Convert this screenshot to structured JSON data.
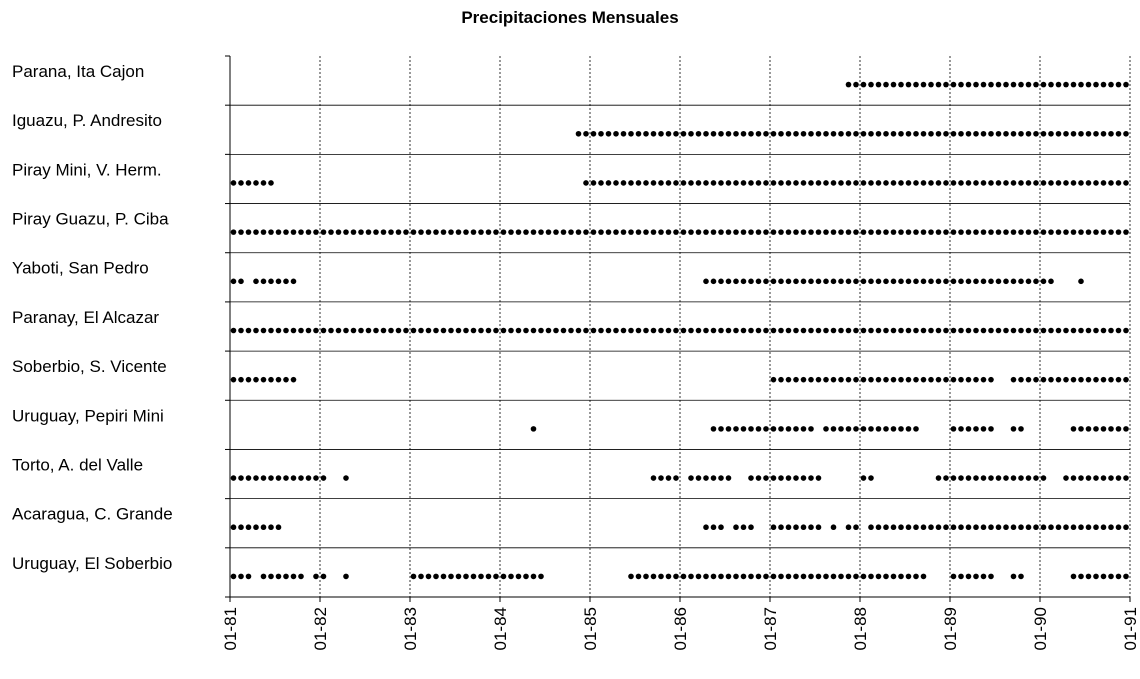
{
  "chart_data": {
    "type": "scatter",
    "title": "Precipitaciones Mensuales",
    "xlabel": "",
    "ylabel": "",
    "x_ticks": [
      "01-81",
      "01-82",
      "01-83",
      "01-84",
      "01-85",
      "01-86",
      "01-87",
      "01-88",
      "01-89",
      "01-90",
      "01-91"
    ],
    "xlim": [
      "1981-01",
      "1991-01"
    ],
    "grid": {
      "vertical": "dotted",
      "horizontal_separators": true
    },
    "marker": {
      "shape": "circle",
      "color": "#000000"
    },
    "series": [
      {
        "name": "Parana, Ita Cajon",
        "segments": [
          [
            "1987-11",
            "1990-12"
          ]
        ]
      },
      {
        "name": "Iguazu, P. Andresito",
        "segments": [
          [
            "1984-11",
            "1990-12"
          ]
        ]
      },
      {
        "name": "Piray Mini, V. Herm.",
        "segments": [
          [
            "1981-01",
            "1981-06"
          ],
          [
            "1984-12",
            "1990-12"
          ]
        ]
      },
      {
        "name": "Piray Guazu, P. Ciba",
        "segments": [
          [
            "1981-01",
            "1990-12"
          ]
        ]
      },
      {
        "name": "Yaboti, San Pedro",
        "segments": [
          [
            "1981-01",
            "1981-02"
          ],
          [
            "1981-04",
            "1981-09"
          ],
          [
            "1986-04",
            "1990-02"
          ],
          [
            "1990-06",
            "1990-06"
          ]
        ]
      },
      {
        "name": "Paranay, El Alcazar",
        "segments": [
          [
            "1981-01",
            "1990-12"
          ]
        ]
      },
      {
        "name": "Soberbio, S. Vicente",
        "segments": [
          [
            "1981-01",
            "1981-09"
          ],
          [
            "1987-01",
            "1989-06"
          ],
          [
            "1989-09",
            "1990-12"
          ]
        ]
      },
      {
        "name": "Uruguay, Pepiri Mini",
        "segments": [
          [
            "1984-05",
            "1984-05"
          ],
          [
            "1986-05",
            "1987-06"
          ],
          [
            "1987-08",
            "1988-08"
          ],
          [
            "1989-01",
            "1989-06"
          ],
          [
            "1989-09",
            "1989-10"
          ],
          [
            "1990-05",
            "1990-12"
          ]
        ]
      },
      {
        "name": "Torto, A. del Valle",
        "segments": [
          [
            "1981-01",
            "1982-01"
          ],
          [
            "1982-04",
            "1982-04"
          ],
          [
            "1985-09",
            "1985-12"
          ],
          [
            "1986-02",
            "1986-07"
          ],
          [
            "1986-10",
            "1987-07"
          ],
          [
            "1988-01",
            "1988-02"
          ],
          [
            "1988-11",
            "1990-01"
          ],
          [
            "1990-04",
            "1990-12"
          ]
        ]
      },
      {
        "name": "Acaragua, C. Grande",
        "segments": [
          [
            "1981-01",
            "1981-07"
          ],
          [
            "1986-04",
            "1986-06"
          ],
          [
            "1986-08",
            "1986-10"
          ],
          [
            "1987-01",
            "1987-07"
          ],
          [
            "1987-09",
            "1987-09"
          ],
          [
            "1987-11",
            "1987-12"
          ],
          [
            "1988-02",
            "1990-12"
          ]
        ]
      },
      {
        "name": "Uruguay, El Soberbio",
        "segments": [
          [
            "1981-01",
            "1981-02"
          ],
          [
            "1981-03",
            "1981-03"
          ],
          [
            "1981-05",
            "1981-10"
          ],
          [
            "1981-12",
            "1982-01"
          ],
          [
            "1982-04",
            "1982-04"
          ],
          [
            "1983-01",
            "1984-06"
          ],
          [
            "1985-06",
            "1987-07"
          ],
          [
            "1987-08",
            "1988-09"
          ],
          [
            "1989-01",
            "1989-06"
          ],
          [
            "1989-09",
            "1989-10"
          ],
          [
            "1990-05",
            "1990-12"
          ]
        ]
      }
    ]
  }
}
